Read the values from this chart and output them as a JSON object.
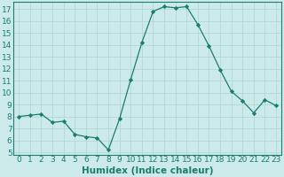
{
  "x": [
    0,
    1,
    2,
    3,
    4,
    5,
    6,
    7,
    8,
    9,
    10,
    11,
    12,
    13,
    14,
    15,
    16,
    17,
    18,
    19,
    20,
    21,
    22,
    23
  ],
  "y": [
    8.0,
    8.1,
    8.2,
    7.5,
    7.6,
    6.5,
    6.3,
    6.2,
    5.2,
    7.8,
    11.1,
    14.2,
    16.8,
    17.2,
    17.1,
    17.2,
    15.7,
    13.9,
    11.9,
    10.1,
    9.3,
    8.3,
    9.4,
    8.9
  ],
  "line_color": "#1a7d6e",
  "marker": "D",
  "marker_size": 2.2,
  "xlabel": "Humidex (Indice chaleur)",
  "ylim": [
    4.8,
    17.6
  ],
  "xlim": [
    -0.5,
    23.5
  ],
  "yticks": [
    5,
    6,
    7,
    8,
    9,
    10,
    11,
    12,
    13,
    14,
    15,
    16,
    17
  ],
  "xticks": [
    0,
    1,
    2,
    3,
    4,
    5,
    6,
    7,
    8,
    9,
    10,
    11,
    12,
    13,
    14,
    15,
    16,
    17,
    18,
    19,
    20,
    21,
    22,
    23
  ],
  "bg_color": "#cdeaea",
  "grid_color": "#b0d8d8",
  "tick_color": "#1a7d6e",
  "label_color": "#1a7d6e",
  "font_size": 6.5,
  "xlabel_fontsize": 7.5
}
